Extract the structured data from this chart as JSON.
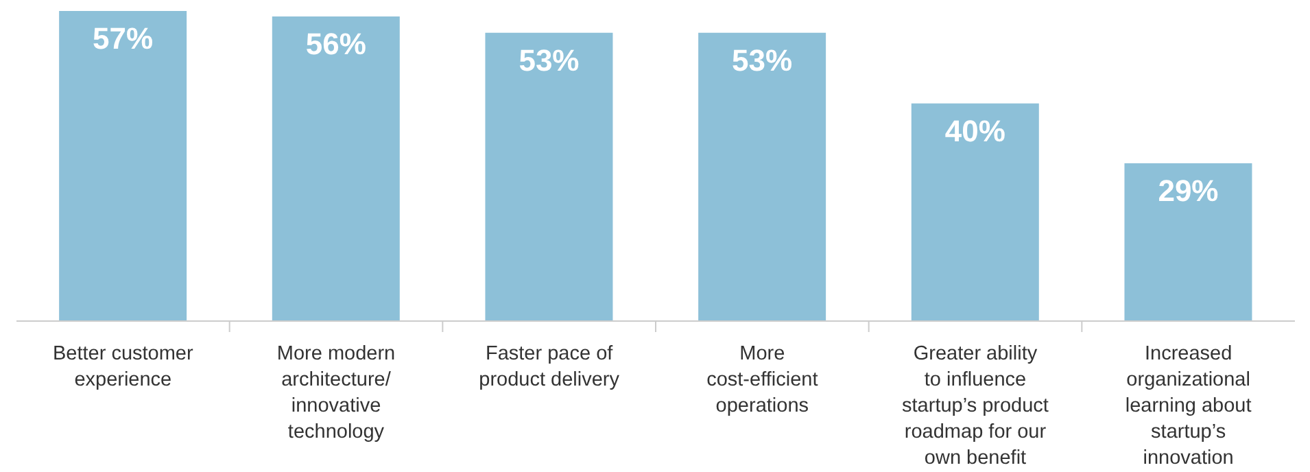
{
  "chart_data": {
    "type": "bar",
    "categories": [
      "Better customer experience",
      "More modern architecture/ innovative technology",
      "Faster pace of product delivery",
      "More cost-efficient operations",
      "Greater ability to influence startup’s product roadmap for our own benefit",
      "Increased organizational learning about startup’s innovation"
    ],
    "values": [
      57,
      56,
      53,
      53,
      40,
      29
    ],
    "value_labels": [
      "57%",
      "56%",
      "53%",
      "53%",
      "40%",
      "29%"
    ],
    "color": "#8dc0d8",
    "grid": false,
    "legend": false
  }
}
